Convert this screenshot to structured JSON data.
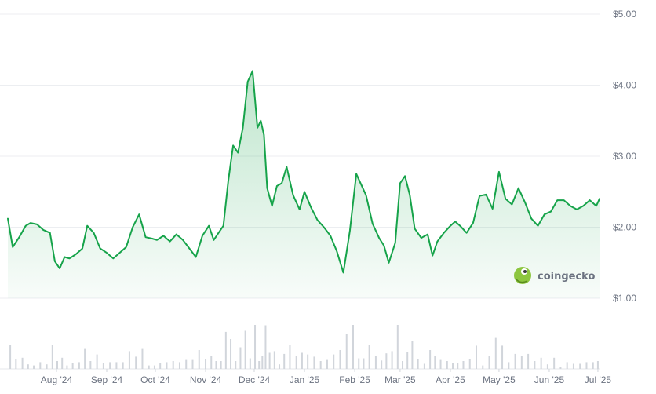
{
  "brand": {
    "name": "coingecko",
    "logo_icon": "gecko-logo-icon",
    "logo_color": "#8dc63f"
  },
  "chart_data": {
    "type": "area",
    "title": "",
    "xlabel": "",
    "ylabel": "",
    "y_axis_position": "right",
    "ylim": [
      1.0,
      5.0
    ],
    "y_ticks": [
      {
        "value": 5.0,
        "label": "$5.00"
      },
      {
        "value": 4.0,
        "label": "$4.00"
      },
      {
        "value": 3.0,
        "label": "$3.00"
      },
      {
        "value": 2.0,
        "label": "$2.00"
      },
      {
        "value": 1.0,
        "label": "$1.00"
      }
    ],
    "xlim": [
      "2024-07-02",
      "2025-07-02"
    ],
    "x_ticks": [
      {
        "value": "2024-08-01",
        "label": "Aug '24"
      },
      {
        "value": "2024-09-01",
        "label": "Sep '24"
      },
      {
        "value": "2024-10-01",
        "label": "Oct '24"
      },
      {
        "value": "2024-11-01",
        "label": "Nov '24"
      },
      {
        "value": "2024-12-01",
        "label": "Dec '24"
      },
      {
        "value": "2025-01-01",
        "label": "Jan '25"
      },
      {
        "value": "2025-02-01",
        "label": "Feb '25"
      },
      {
        "value": "2025-03-01",
        "label": "Mar '25"
      },
      {
        "value": "2025-04-01",
        "label": "Apr '25"
      },
      {
        "value": "2025-05-01",
        "label": "May '25"
      },
      {
        "value": "2025-06-01",
        "label": "Jun '25"
      },
      {
        "value": "2025-07-01",
        "label": "Jul '25"
      }
    ],
    "grid": true,
    "line_color": "#16a34a",
    "fill_color": "#16a34a",
    "volume_color": "#d1d5db",
    "series": [
      {
        "x": [
          "2024-07-02",
          "2024-07-05",
          "2024-07-09",
          "2024-07-13",
          "2024-07-16",
          "2024-07-20",
          "2024-07-24",
          "2024-07-28",
          "2024-07-31",
          "2024-08-03",
          "2024-08-06",
          "2024-08-09",
          "2024-08-13",
          "2024-08-17",
          "2024-08-20",
          "2024-08-24",
          "2024-08-28",
          "2024-09-01",
          "2024-09-05",
          "2024-09-09",
          "2024-09-13",
          "2024-09-17",
          "2024-09-21",
          "2024-09-25",
          "2024-09-29",
          "2024-10-02",
          "2024-10-06",
          "2024-10-10",
          "2024-10-14",
          "2024-10-18",
          "2024-10-22",
          "2024-10-26",
          "2024-10-30",
          "2024-11-03",
          "2024-11-06",
          "2024-11-09",
          "2024-11-12",
          "2024-11-15",
          "2024-11-18",
          "2024-11-21",
          "2024-11-24",
          "2024-11-27",
          "2024-11-30",
          "2024-12-03",
          "2024-12-05",
          "2024-12-07",
          "2024-12-09",
          "2024-12-12",
          "2024-12-15",
          "2024-12-18",
          "2024-12-21",
          "2024-12-25",
          "2024-12-29",
          "2025-01-01",
          "2025-01-05",
          "2025-01-09",
          "2025-01-13",
          "2025-01-17",
          "2025-01-21",
          "2025-01-25",
          "2025-01-29",
          "2025-02-02",
          "2025-02-05",
          "2025-02-08",
          "2025-02-12",
          "2025-02-16",
          "2025-02-19",
          "2025-02-22",
          "2025-02-26",
          "2025-03-01",
          "2025-03-04",
          "2025-03-07",
          "2025-03-10",
          "2025-03-14",
          "2025-03-18",
          "2025-03-21",
          "2025-03-24",
          "2025-03-28",
          "2025-04-01",
          "2025-04-04",
          "2025-04-07",
          "2025-04-11",
          "2025-04-15",
          "2025-04-19",
          "2025-04-23",
          "2025-04-27",
          "2025-05-01",
          "2025-05-05",
          "2025-05-09",
          "2025-05-13",
          "2025-05-17",
          "2025-05-21",
          "2025-05-25",
          "2025-05-29",
          "2025-06-02",
          "2025-06-06",
          "2025-06-10",
          "2025-06-14",
          "2025-06-18",
          "2025-06-22",
          "2025-06-26",
          "2025-06-30",
          "2025-07-02"
        ],
        "y": [
          2.12,
          1.72,
          1.86,
          2.02,
          2.06,
          2.04,
          1.96,
          1.92,
          1.52,
          1.42,
          1.58,
          1.56,
          1.62,
          1.7,
          2.02,
          1.92,
          1.7,
          1.64,
          1.56,
          1.64,
          1.72,
          2.0,
          2.18,
          1.86,
          1.84,
          1.82,
          1.88,
          1.8,
          1.9,
          1.82,
          1.7,
          1.58,
          1.88,
          2.02,
          1.82,
          1.92,
          2.02,
          2.65,
          3.15,
          3.05,
          3.4,
          4.05,
          4.2,
          3.4,
          3.5,
          3.3,
          2.55,
          2.3,
          2.58,
          2.62,
          2.85,
          2.45,
          2.25,
          2.5,
          2.28,
          2.1,
          2.0,
          1.88,
          1.66,
          1.36,
          1.95,
          2.75,
          2.6,
          2.45,
          2.05,
          1.85,
          1.74,
          1.5,
          1.78,
          2.62,
          2.72,
          2.45,
          1.98,
          1.85,
          1.9,
          1.6,
          1.8,
          1.92,
          2.02,
          2.08,
          2.02,
          1.92,
          2.06,
          2.44,
          2.46,
          2.26,
          2.78,
          2.4,
          2.32,
          2.55,
          2.35,
          2.12,
          2.02,
          2.18,
          2.22,
          2.38,
          2.38,
          2.3,
          2.25,
          2.3,
          2.38,
          2.3,
          2.4
        ]
      }
    ]
  }
}
